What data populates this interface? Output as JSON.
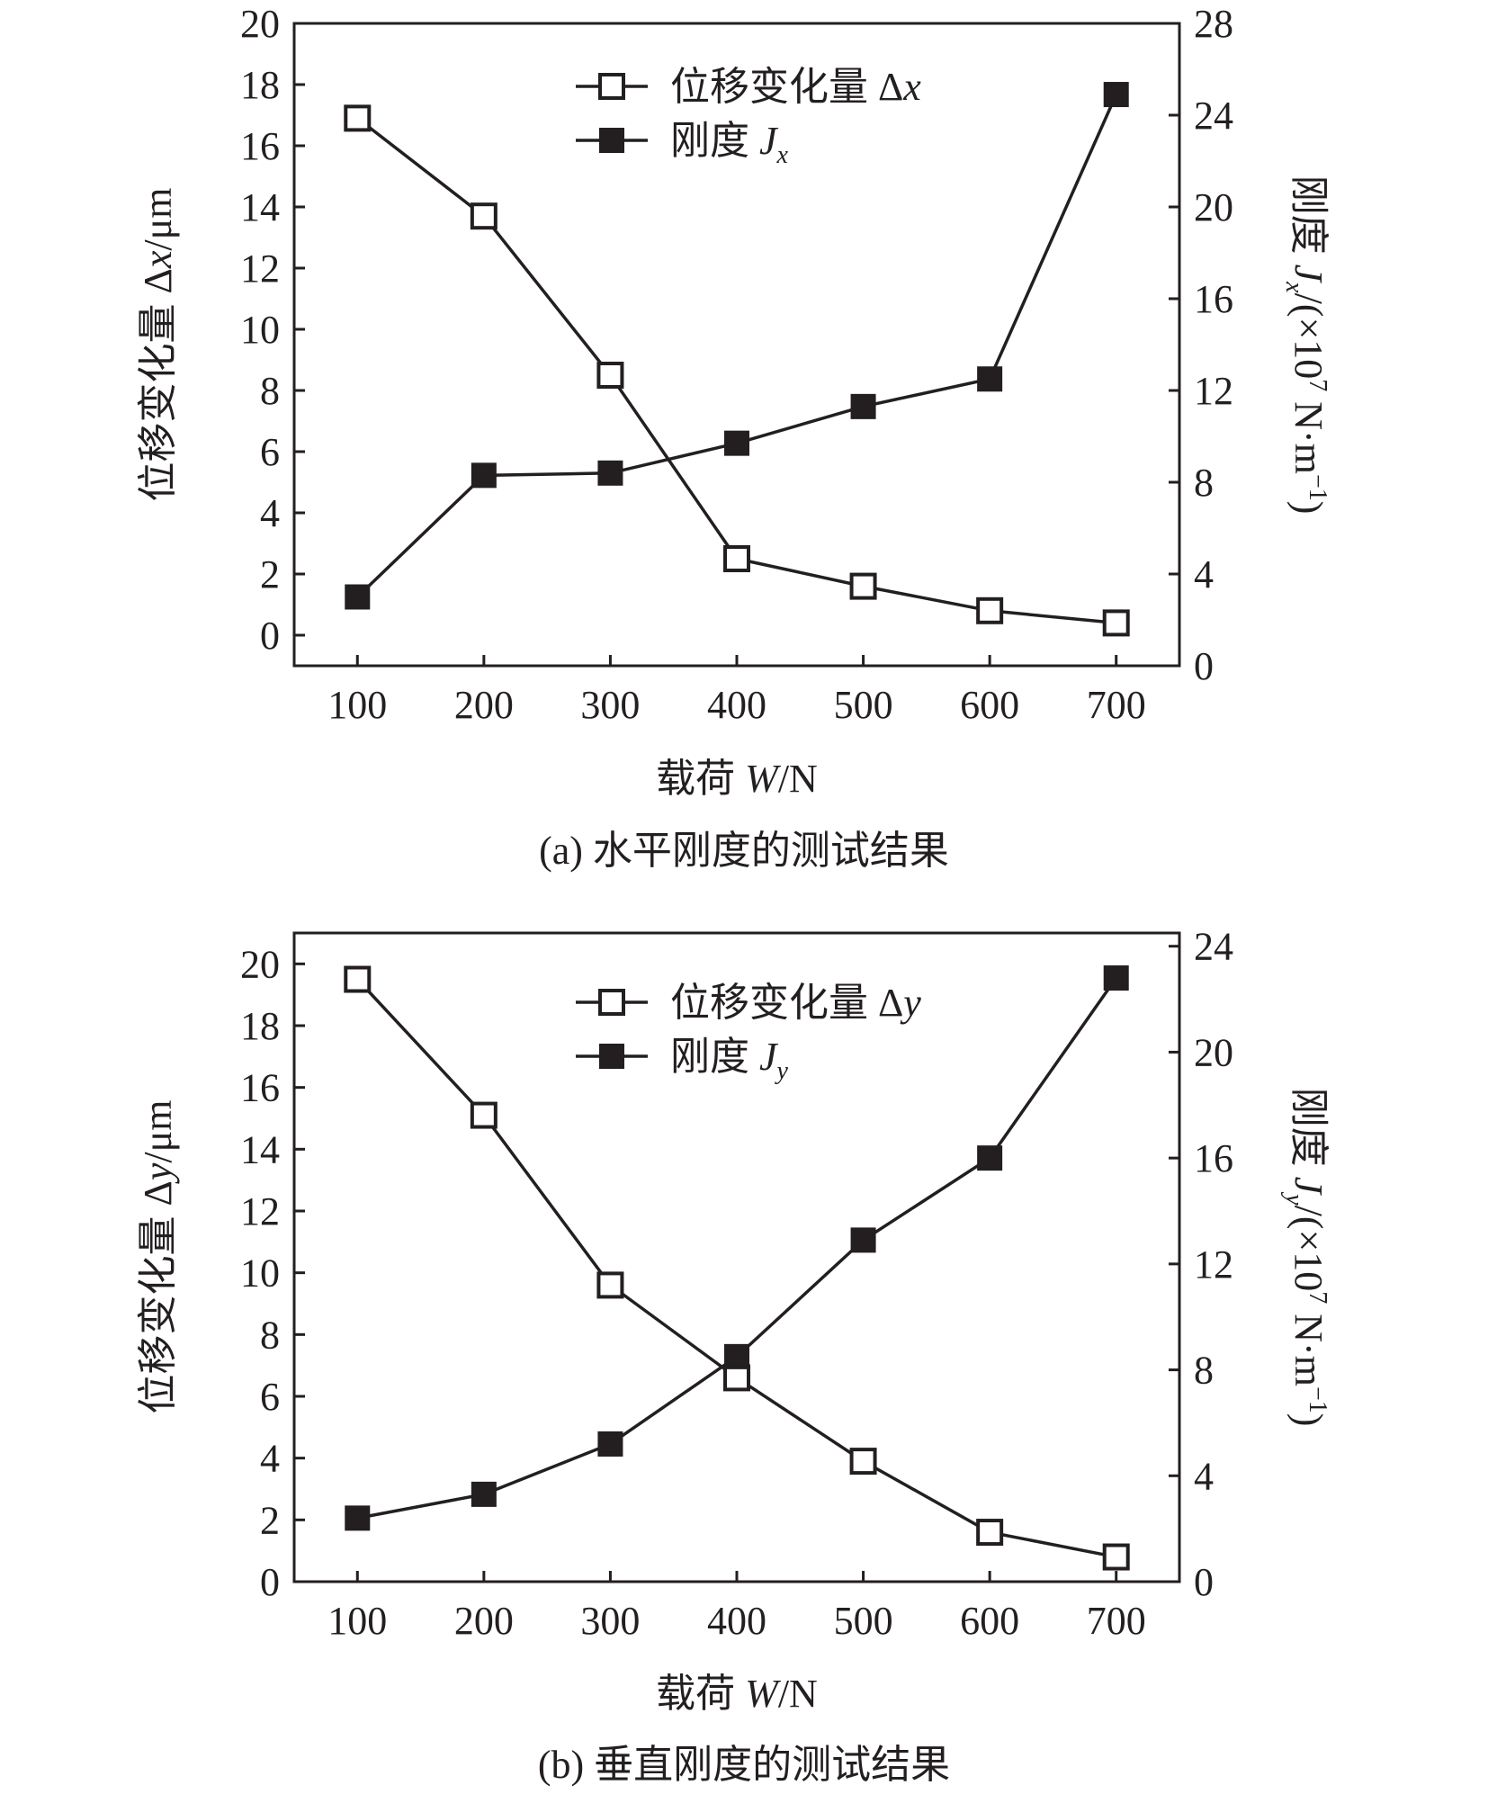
{
  "chart_data": [
    {
      "type": "line",
      "caption": "(a)  水平刚度的测试结果",
      "xlabel": {
        "prefix": "载荷 ",
        "var": "W",
        "suffix": "/N"
      },
      "ylabel_left": {
        "prefix": "位移变化量 Δ",
        "var": "x",
        "suffix": "/μm"
      },
      "ylabel_right": {
        "prefix": "刚度 ",
        "var": "J",
        "sub": "x",
        "suffix": "/(×10",
        "sup": "7",
        "suffix2": " N·m",
        "sup2": "−1",
        "end": ")"
      },
      "x": [
        100,
        200,
        300,
        400,
        500,
        600,
        700
      ],
      "xlim": [
        50,
        750
      ],
      "ylim_left": [
        -1,
        20
      ],
      "ylim_right": [
        0,
        28
      ],
      "yticks_left": [
        0,
        2,
        4,
        6,
        8,
        10,
        12,
        14,
        16,
        18,
        20
      ],
      "yticks_right": [
        0,
        4,
        8,
        12,
        16,
        20,
        24,
        28
      ],
      "series": [
        {
          "name": "位移变化量 Δx",
          "legend_prefix": "位移变化量 Δ",
          "legend_var": "x",
          "legend_sub": "",
          "axis": "left",
          "marker": "open-square",
          "values": [
            16.9,
            13.7,
            8.5,
            2.5,
            1.6,
            0.8,
            0.4
          ]
        },
        {
          "name": "刚度 Jx",
          "legend_prefix": "刚度 ",
          "legend_var": "J",
          "legend_sub": "x",
          "axis": "right",
          "marker": "filled-square",
          "values": [
            3.0,
            8.3,
            8.4,
            9.7,
            11.3,
            12.5,
            24.9
          ]
        }
      ],
      "legend_position": "top-center",
      "grid": false
    },
    {
      "type": "line",
      "caption": "(b)  垂直刚度的测试结果",
      "xlabel": {
        "prefix": "载荷 ",
        "var": "W",
        "suffix": "/N"
      },
      "ylabel_left": {
        "prefix": "位移变化量 Δ",
        "var": "y",
        "suffix": "/μm"
      },
      "ylabel_right": {
        "prefix": "刚度 ",
        "var": "J",
        "sub": "y",
        "suffix": "/(×10",
        "sup": "7",
        "suffix2": " N·m",
        "sup2": "−1",
        "end": ")"
      },
      "x": [
        100,
        200,
        300,
        400,
        500,
        600,
        700
      ],
      "xlim": [
        50,
        750
      ],
      "ylim_left": [
        0,
        21
      ],
      "ylim_right": [
        0,
        24.5
      ],
      "yticks_left": [
        0,
        2,
        4,
        6,
        8,
        10,
        12,
        14,
        16,
        18,
        20
      ],
      "yticks_right": [
        0,
        4,
        8,
        12,
        16,
        20,
        24
      ],
      "series": [
        {
          "name": "位移变化量 Δy",
          "legend_prefix": "位移变化量 Δ",
          "legend_var": "y",
          "legend_sub": "",
          "axis": "left",
          "marker": "open-square",
          "values": [
            19.5,
            15.1,
            9.6,
            6.6,
            3.9,
            1.6,
            0.8
          ]
        },
        {
          "name": "刚度 Jy",
          "legend_prefix": "刚度 ",
          "legend_var": "J",
          "legend_sub": "y",
          "axis": "right",
          "marker": "filled-square",
          "values": [
            2.4,
            3.3,
            5.2,
            8.5,
            12.9,
            16.0,
            22.8
          ]
        }
      ],
      "legend_position": "top-center",
      "grid": false
    }
  ],
  "colors": {
    "ink": "#231f20",
    "background": "#ffffff"
  }
}
